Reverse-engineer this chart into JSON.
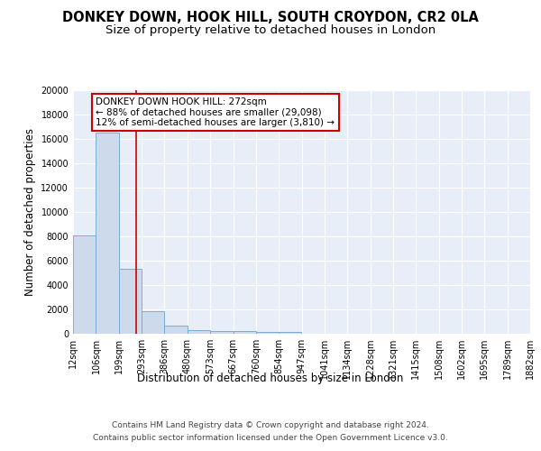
{
  "title_line1": "DONKEY DOWN, HOOK HILL, SOUTH CROYDON, CR2 0LA",
  "title_line2": "Size of property relative to detached houses in London",
  "xlabel": "Distribution of detached houses by size in London",
  "ylabel": "Number of detached properties",
  "bar_color": "#ccdaeb",
  "bar_edge_color": "#7aadd4",
  "background_color": "#e8eef7",
  "grid_color": "#ffffff",
  "red_line_x": 272,
  "annotation_text": "DONKEY DOWN HOOK HILL: 272sqm\n← 88% of detached houses are smaller (29,098)\n12% of semi-detached houses are larger (3,810) →",
  "annotation_box_color": "#ffffff",
  "annotation_border_color": "#cc0000",
  "footer_line1": "Contains HM Land Registry data © Crown copyright and database right 2024.",
  "footer_line2": "Contains public sector information licensed under the Open Government Licence v3.0.",
  "bin_edges": [
    12,
    106,
    199,
    293,
    386,
    480,
    573,
    667,
    760,
    854,
    947,
    1041,
    1134,
    1228,
    1321,
    1415,
    1508,
    1602,
    1695,
    1789,
    1882
  ],
  "bin_counts": [
    8100,
    16500,
    5300,
    1850,
    700,
    300,
    220,
    200,
    170,
    130,
    0,
    0,
    0,
    0,
    0,
    0,
    0,
    0,
    0,
    0
  ],
  "ylim": [
    0,
    20000
  ],
  "title_fontsize": 10.5,
  "subtitle_fontsize": 9.5,
  "tick_fontsize": 7,
  "ylabel_fontsize": 8.5,
  "xlabel_fontsize": 8.5,
  "footer_fontsize": 6.5,
  "annotation_fontsize": 7.5
}
